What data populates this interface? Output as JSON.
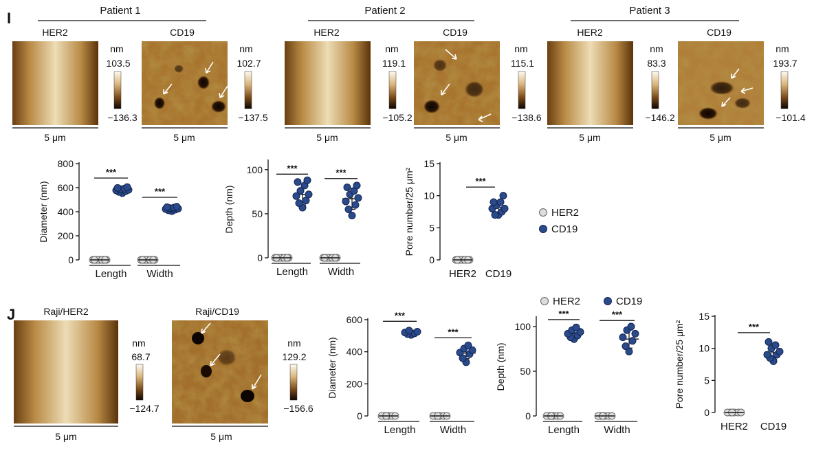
{
  "panel_labels": {
    "I": "I",
    "J": "J"
  },
  "patients": [
    {
      "label": "Patient 1",
      "her2": {
        "title": "HER2",
        "max": "103.5",
        "min": "−136.3",
        "unit": "nm",
        "scale": "5 μm"
      },
      "cd19": {
        "title": "CD19",
        "max": "102.7",
        "min": "−137.5",
        "unit": "nm",
        "scale": "5 μm"
      }
    },
    {
      "label": "Patient 2",
      "her2": {
        "title": "HER2",
        "max": "119.1",
        "min": "−105.2",
        "unit": "nm",
        "scale": "5 μm"
      },
      "cd19": {
        "title": "CD19",
        "max": "115.1",
        "min": "−138.6",
        "unit": "nm",
        "scale": "5 μm"
      }
    },
    {
      "label": "Patient 3",
      "her2": {
        "title": "HER2",
        "max": "83.3",
        "min": "−146.2",
        "unit": "nm",
        "scale": "5 μm"
      },
      "cd19": {
        "title": "CD19",
        "max": "193.7",
        "min": "−101.4",
        "unit": "nm",
        "scale": "5 μm"
      }
    }
  ],
  "raji": {
    "her2": {
      "title": "Raji/HER2",
      "max": "68.7",
      "min": "−124.7",
      "unit": "nm",
      "scale": "5 μm"
    },
    "cd19": {
      "title": "Raji/CD19",
      "max": "129.2",
      "min": "−156.6",
      "unit": "nm",
      "scale": "5 μm"
    }
  },
  "legend": {
    "her2": "HER2",
    "cd19": "CD19"
  },
  "colors": {
    "her2_fill": "#dcdcdc",
    "cd19_fill": "#2a4a8c",
    "afm_dark": "#1a0d02",
    "afm_mid": "#a8752f",
    "afm_light": "#f3e4bf"
  },
  "chart_data": [
    {
      "id": "I-diameter",
      "type": "scatter",
      "ylabel": "Diameter (nm)",
      "ylim": [
        0,
        800
      ],
      "yticks": [
        0,
        200,
        400,
        600,
        800
      ],
      "categories": [
        "Length",
        "Width"
      ],
      "series": [
        {
          "name": "HER2",
          "values": [
            [
              0,
              0,
              0,
              0,
              0,
              0,
              0,
              0,
              0
            ],
            [
              0,
              0,
              0,
              0,
              0,
              0,
              0,
              0,
              0
            ]
          ]
        },
        {
          "name": "CD19",
          "values": [
            [
              555,
              565,
              572,
              578,
              582,
              588,
              592,
              598,
              605
            ],
            [
              405,
              412,
              418,
              422,
              426,
              430,
              434,
              438,
              442
            ]
          ]
        }
      ],
      "mean": [
        580,
        425
      ],
      "sd": [
        20,
        15
      ],
      "significance": [
        "***",
        "***"
      ]
    },
    {
      "id": "I-depth",
      "type": "scatter",
      "ylabel": "Depth (nm)",
      "ylim": [
        0,
        110
      ],
      "yticks": [
        0,
        50,
        100
      ],
      "categories": [
        "Length",
        "Width"
      ],
      "series": [
        {
          "name": "HER2",
          "values": [
            [
              0,
              0,
              0,
              0,
              0,
              0,
              0,
              0,
              0
            ],
            [
              0,
              0,
              0,
              0,
              0,
              0,
              0,
              0,
              0
            ]
          ]
        },
        {
          "name": "CD19",
          "values": [
            [
              57,
              62,
              65,
              70,
              72,
              76,
              82,
              86,
              88
            ],
            [
              48,
              55,
              60,
              64,
              68,
              72,
              76,
              80,
              82
            ]
          ]
        }
      ],
      "mean": [
        72,
        67
      ],
      "sd": [
        12,
        12
      ],
      "significance": [
        "***",
        "***"
      ]
    },
    {
      "id": "I-pore",
      "type": "scatter",
      "ylabel": "Pore number/25 μm²",
      "ylim": [
        0,
        15
      ],
      "yticks": [
        0,
        5,
        10,
        15
      ],
      "categories": [
        "HER2",
        "CD19"
      ],
      "values": [
        [
          0,
          0,
          0,
          0,
          0,
          0,
          0,
          0,
          0
        ],
        [
          7,
          7,
          7.5,
          8,
          8,
          8.5,
          9,
          9,
          10
        ]
      ],
      "mean": [
        0,
        8.2
      ],
      "sd": [
        0,
        1
      ],
      "significance": [
        "***"
      ]
    },
    {
      "id": "J-diameter",
      "type": "scatter",
      "ylabel": "Diameter (nm)",
      "ylim": [
        0,
        600
      ],
      "yticks": [
        0,
        200,
        400,
        600
      ],
      "categories": [
        "Length",
        "Width"
      ],
      "series": [
        {
          "name": "HER2",
          "values": [
            [
              0,
              0,
              0,
              0,
              0,
              0
            ],
            [
              0,
              0,
              0,
              0,
              0,
              0
            ]
          ]
        },
        {
          "name": "CD19",
          "values": [
            [
              505,
              510,
              515,
              520,
              525,
              532
            ],
            [
              335,
              360,
              385,
              395,
              410,
              420,
              440
            ]
          ]
        }
      ],
      "mean": [
        518,
        392
      ],
      "sd": [
        12,
        35
      ],
      "significance": [
        "***",
        "***"
      ]
    },
    {
      "id": "J-depth",
      "type": "scatter",
      "ylabel": "Depth (nm)",
      "ylim": [
        0,
        110
      ],
      "yticks": [
        0,
        50,
        100
      ],
      "categories": [
        "Length",
        "Width"
      ],
      "series": [
        {
          "name": "HER2",
          "values": [
            [
              0,
              0,
              0,
              0,
              0,
              0
            ],
            [
              0,
              0,
              0,
              0,
              0,
              0
            ]
          ]
        },
        {
          "name": "CD19",
          "values": [
            [
              86,
              88,
              90,
              92,
              94,
              96,
              99
            ],
            [
              72,
              78,
              84,
              88,
              92,
              96,
              100
            ]
          ]
        }
      ],
      "mean": [
        92,
        86
      ],
      "sd": [
        5,
        10
      ],
      "significance": [
        "***",
        "***"
      ]
    },
    {
      "id": "J-pore",
      "type": "scatter",
      "ylabel": "Pore number/25 μm²",
      "ylim": [
        0,
        15
      ],
      "yticks": [
        0,
        5,
        10,
        15
      ],
      "categories": [
        "HER2",
        "CD19"
      ],
      "values": [
        [
          0,
          0,
          0,
          0,
          0,
          0
        ],
        [
          8,
          8.5,
          9,
          9,
          9.5,
          10,
          10.5,
          11
        ]
      ],
      "mean": [
        0,
        9.3
      ],
      "sd": [
        0,
        1
      ],
      "significance": [
        "***"
      ]
    }
  ]
}
